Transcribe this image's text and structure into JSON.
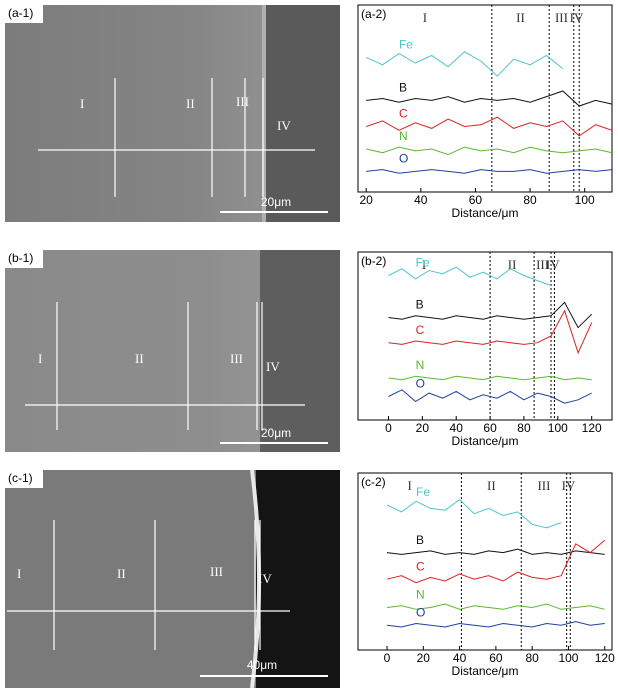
{
  "images": [
    {
      "label": "(a-1)",
      "regions": [
        "I",
        "II",
        "III",
        "IV"
      ],
      "scale_bar": "20μm"
    },
    {
      "label": "(b-1)",
      "regions": [
        "I",
        "II",
        "III",
        "IV"
      ],
      "scale_bar": "20μm"
    },
    {
      "label": "(c-1)",
      "regions": [
        "I",
        "II",
        "III",
        "IV"
      ],
      "scale_bar": "40μm"
    }
  ],
  "chart_data": [
    {
      "type": "line",
      "label": "(a-2)",
      "x_label": "Distance/μm",
      "xlim": [
        17,
        110
      ],
      "xticks": [
        20,
        40,
        60,
        80,
        100
      ],
      "ylim": [
        0,
        100
      ],
      "boundaries": [
        66,
        87,
        96,
        98
      ],
      "regions": [
        "I",
        "II",
        "III",
        "IV"
      ],
      "x": [
        20,
        26,
        32,
        38,
        44,
        50,
        56,
        62,
        68,
        74,
        80,
        86,
        92,
        98,
        104,
        110
      ],
      "series": [
        {
          "name": "Fe",
          "color": "#4fc3cc",
          "values": [
            72,
            68,
            74,
            69,
            73,
            67,
            75,
            70,
            62,
            71,
            68,
            73,
            66,
            null,
            null,
            null
          ]
        },
        {
          "name": "B",
          "color": "#111111",
          "values": [
            49,
            50,
            48,
            50,
            49,
            51,
            48,
            50,
            49,
            50,
            48,
            51,
            54,
            46,
            49,
            47
          ]
        },
        {
          "name": "C",
          "color": "#e02020",
          "values": [
            35,
            38,
            33,
            37,
            34,
            39,
            35,
            36,
            40,
            34,
            37,
            35,
            38,
            30,
            36,
            33
          ]
        },
        {
          "name": "N",
          "color": "#5cb832",
          "values": [
            23,
            21,
            24,
            22,
            23,
            20,
            24,
            22,
            23,
            21,
            24,
            22,
            21,
            22,
            23,
            21
          ]
        },
        {
          "name": "O",
          "color": "#1f3fa0",
          "values": [
            11,
            12,
            10,
            11,
            12,
            11,
            10,
            12,
            11,
            11,
            12,
            10,
            11,
            12,
            11,
            12
          ]
        }
      ]
    },
    {
      "type": "line",
      "label": "(b-2)",
      "x_label": "Distance/μm",
      "xlim": [
        -18,
        132
      ],
      "xticks": [
        0,
        20,
        40,
        60,
        80,
        100,
        120
      ],
      "ylim": [
        0,
        100
      ],
      "boundaries": [
        60,
        86,
        96,
        98
      ],
      "regions": [
        "I",
        "II",
        "III",
        "IV"
      ],
      "x": [
        0,
        8,
        16,
        24,
        32,
        40,
        48,
        56,
        64,
        72,
        80,
        88,
        96,
        104,
        112,
        120
      ],
      "series": [
        {
          "name": "Fe",
          "color": "#4fc3cc",
          "values": [
            86,
            90,
            84,
            89,
            87,
            91,
            85,
            88,
            84,
            90,
            86,
            83,
            80,
            null,
            null,
            null
          ]
        },
        {
          "name": "B",
          "color": "#111111",
          "values": [
            61,
            60,
            62,
            61,
            60,
            62,
            61,
            60,
            62,
            61,
            60,
            61,
            62,
            70,
            55,
            63
          ]
        },
        {
          "name": "C",
          "color": "#e02020",
          "values": [
            46,
            45,
            47,
            46,
            45,
            47,
            46,
            45,
            47,
            46,
            45,
            46,
            50,
            65,
            40,
            58
          ]
        },
        {
          "name": "N",
          "color": "#5cb832",
          "values": [
            25,
            24,
            26,
            25,
            24,
            26,
            25,
            24,
            26,
            25,
            24,
            25,
            26,
            24,
            25,
            24
          ]
        },
        {
          "name": "O",
          "color": "#1f3fa0",
          "values": [
            14,
            18,
            11,
            16,
            13,
            17,
            12,
            15,
            13,
            17,
            12,
            16,
            14,
            10,
            12,
            16
          ]
        }
      ]
    },
    {
      "type": "line",
      "label": "(c-2)",
      "x_label": "Distance/μm",
      "xlim": [
        -16,
        124
      ],
      "xticks": [
        0,
        20,
        40,
        60,
        80,
        100,
        120
      ],
      "ylim": [
        0,
        100
      ],
      "boundaries": [
        41,
        74,
        99,
        101
      ],
      "regions": [
        "I",
        "II",
        "III",
        "IV"
      ],
      "x": [
        0,
        8,
        16,
        24,
        32,
        40,
        48,
        56,
        64,
        72,
        80,
        88,
        96,
        104,
        112,
        120
      ],
      "series": [
        {
          "name": "Fe",
          "color": "#4fc3cc",
          "values": [
            82,
            78,
            84,
            80,
            79,
            85,
            77,
            80,
            76,
            78,
            71,
            69,
            72,
            null,
            null,
            null
          ]
        },
        {
          "name": "B",
          "color": "#111111",
          "values": [
            55,
            54,
            55,
            56,
            54,
            55,
            54,
            56,
            55,
            57,
            54,
            55,
            54,
            56,
            55,
            54
          ]
        },
        {
          "name": "C",
          "color": "#e02020",
          "values": [
            40,
            42,
            38,
            41,
            39,
            43,
            40,
            42,
            39,
            44,
            41,
            40,
            42,
            60,
            55,
            62
          ]
        },
        {
          "name": "N",
          "color": "#5cb832",
          "values": [
            24,
            25,
            23,
            24,
            26,
            23,
            25,
            24,
            23,
            25,
            24,
            26,
            23,
            24,
            25,
            23
          ]
        },
        {
          "name": "O",
          "color": "#1f3fa0",
          "values": [
            14,
            13,
            15,
            14,
            13,
            15,
            14,
            13,
            15,
            14,
            13,
            15,
            14,
            16,
            14,
            15
          ]
        }
      ]
    }
  ]
}
